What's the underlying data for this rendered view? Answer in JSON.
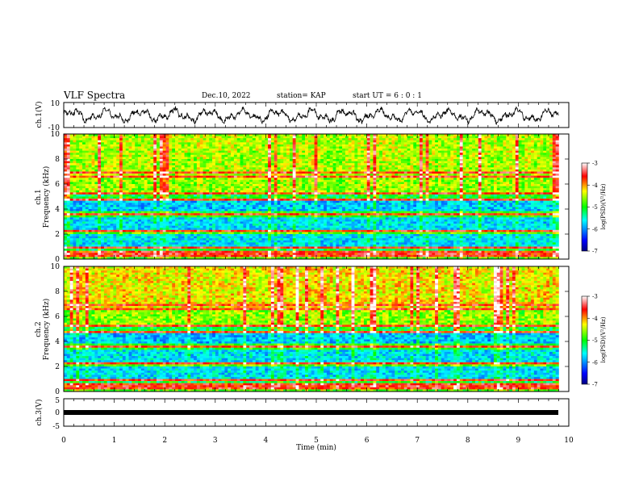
{
  "header": {
    "title": "VLF Spectra",
    "date": "Dec.10, 2022",
    "station": "station= KAP",
    "start_ut": "start  UT =   6 : 0  : 1"
  },
  "chart_data": [
    {
      "type": "line",
      "panel": "ch1-waveform",
      "ylabel": "ch.1(V)",
      "ylim": [
        -10,
        10
      ],
      "yticks": [
        "10",
        "-10"
      ],
      "xlim": [
        0,
        10
      ],
      "note_values": "oscillating waveform roughly between -7 and 6 V over 0–9.8 min"
    },
    {
      "type": "heatmap",
      "panel": "ch1-spectrogram",
      "ylabel": "ch.1\nFrequency  (kHz)",
      "ylim": [
        0,
        10
      ],
      "yticks": [
        "0",
        "2",
        "4",
        "6",
        "8",
        "10"
      ],
      "xlim": [
        0,
        10
      ],
      "data_extent_min": 9.8,
      "colorbar": {
        "label": "log(PSD)(V²/Hz)",
        "range": [
          -7,
          -3
        ],
        "ticks": [
          "-3",
          "-4",
          "-5",
          "-6",
          "-7"
        ]
      }
    },
    {
      "type": "heatmap",
      "panel": "ch2-spectrogram",
      "ylabel": "ch.2\nFrequency  (kHz)",
      "ylim": [
        0,
        10
      ],
      "yticks": [
        "0",
        "2",
        "4",
        "6",
        "8",
        "10"
      ],
      "xlim": [
        0,
        10
      ],
      "data_extent_min": 9.8,
      "colorbar": {
        "label": "log(PSD)(V²/Hz)",
        "range": [
          -7,
          -3
        ],
        "ticks": [
          "-3",
          "-4",
          "-5",
          "-6",
          "-7"
        ]
      }
    },
    {
      "type": "line",
      "panel": "ch3-waveform",
      "ylabel": "ch.3(V)",
      "ylim": [
        -5,
        5
      ],
      "yticks": [
        "5",
        "0",
        "-5"
      ],
      "xlim": [
        0,
        10
      ],
      "xlabel": "Time  (min)",
      "xticks": [
        "0",
        "1",
        "2",
        "3",
        "4",
        "5",
        "6",
        "7",
        "8",
        "9",
        "10"
      ],
      "note_values": "near-constant band around -1 V"
    }
  ],
  "colors": {
    "scale": [
      "#000080",
      "#0000ff",
      "#00ffff",
      "#00ff00",
      "#ffff00",
      "#ff0000",
      "#ffffff"
    ],
    "trace": "#000000"
  }
}
